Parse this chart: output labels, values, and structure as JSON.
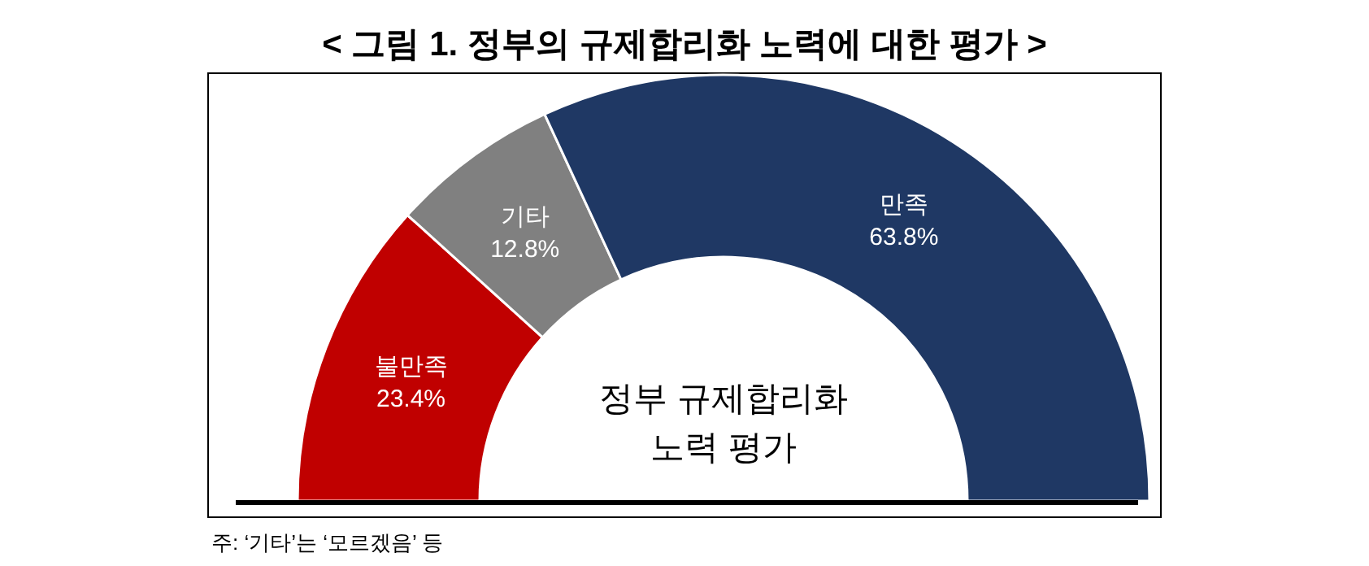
{
  "chart_data": {
    "type": "donut",
    "title": "< 그림 1. 정부의 규제합리화 노력에 대한 평가 >",
    "categories": [
      "불만족",
      "기타",
      "만족"
    ],
    "values": [
      23.4,
      12.8,
      63.8
    ],
    "colors": [
      "#c00000",
      "#808080",
      "#1f3864"
    ],
    "value_labels": [
      "23.4%",
      "12.8%",
      "63.8%"
    ],
    "annotations": [
      "정부 규제합리화\n노력 평가",
      "주: ‘기타’는 ‘모르겠음’ 등"
    ]
  }
}
